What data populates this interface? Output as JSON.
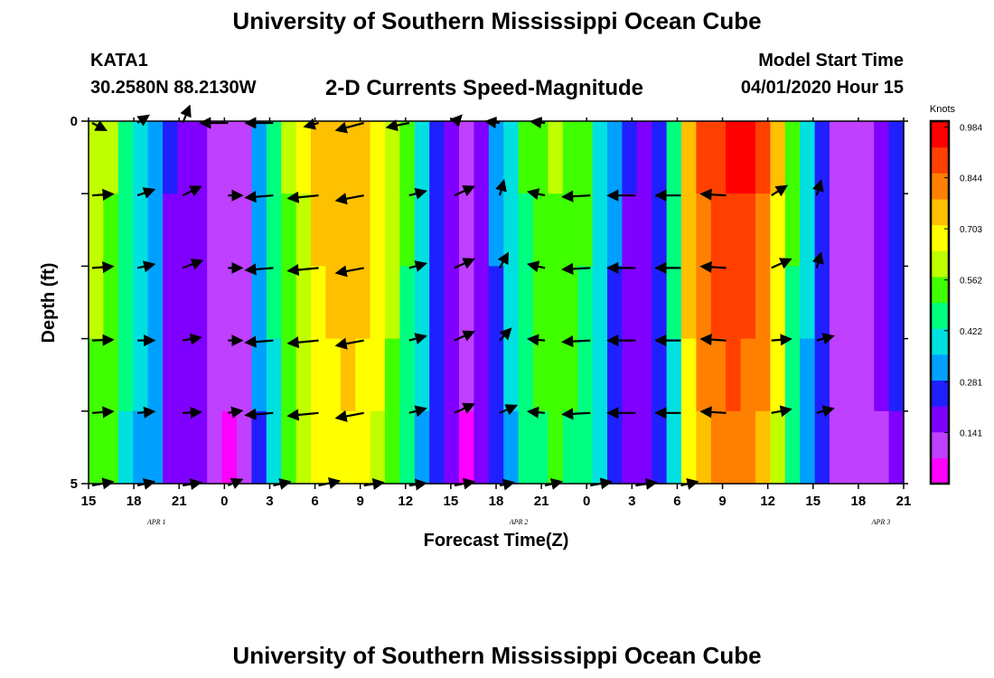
{
  "header": {
    "title": "University of Southern Mississippi Ocean Cube",
    "station_id": "KATA1",
    "coordinates": "30.2580N 88.2130W",
    "chart_title": "2-D Currents Speed-Magnitude",
    "model_label": "Model Start Time",
    "model_time": "04/01/2020 Hour 15"
  },
  "footer": {
    "title": "University of Southern Mississippi Ocean Cube"
  },
  "colors": {
    "scale": [
      "#ff00ff",
      "#c040ff",
      "#8000ff",
      "#2020ff",
      "#00a0ff",
      "#00e0e0",
      "#00ff80",
      "#40ff00",
      "#c0ff00",
      "#ffff00",
      "#ffc000",
      "#ff8000",
      "#ff4000",
      "#ff0000"
    ]
  },
  "chart_data": {
    "type": "heatmap",
    "title": "2-D Currents Speed-Magnitude",
    "xlabel": "Forecast Time(Z)",
    "ylabel": "Depth (ft)",
    "ylim": [
      0,
      5
    ],
    "y_tick_labels": [
      "0",
      "5"
    ],
    "x_tick_labels": [
      "15",
      "18",
      "21",
      "0",
      "3",
      "6",
      "9",
      "12",
      "15",
      "18",
      "21",
      "0",
      "3",
      "6",
      "9",
      "12",
      "15",
      "18",
      "21"
    ],
    "date_labels": [
      {
        "label": "APR 1",
        "hour_index": 4.5
      },
      {
        "label": "APR 2",
        "hour_index": 28.5
      },
      {
        "label": "APR 3",
        "hour_index": 52.5
      }
    ],
    "colorbar": {
      "unit": "Knots",
      "min": 0.0,
      "max": 1.0,
      "ticks": [
        0.984,
        0.844,
        0.703,
        0.562,
        0.422,
        0.281,
        0.141
      ]
    },
    "depth_rows": 5,
    "hours_count": 55,
    "speed_knots_profile": [
      0.62,
      0.58,
      0.48,
      0.4,
      0.33,
      0.22,
      0.2,
      0.18,
      0.12,
      0.08,
      0.1,
      0.32,
      0.46,
      0.58,
      0.66,
      0.74,
      0.77,
      0.78,
      0.76,
      0.7,
      0.62,
      0.52,
      0.4,
      0.28,
      0.18,
      0.08,
      0.18,
      0.3,
      0.4,
      0.5,
      0.55,
      0.58,
      0.56,
      0.52,
      0.42,
      0.3,
      0.22,
      0.17,
      0.25,
      0.46,
      0.76,
      0.86,
      0.92,
      0.95,
      0.93,
      0.86,
      0.72,
      0.52,
      0.38,
      0.27,
      0.14,
      0.1,
      0.12,
      0.16,
      0.24
    ],
    "depth_factors": [
      1.0,
      0.97,
      0.95,
      0.92,
      0.88
    ],
    "vectors": [
      [
        [
          1,
          1
        ],
        [
          0.8,
          -1
        ],
        [
          0.5,
          -2.3
        ],
        [
          -2,
          0
        ],
        [
          -2,
          0
        ],
        [
          -1,
          0.5
        ],
        [
          -2,
          1
        ],
        [
          -1.6,
          0.6
        ],
        [
          0.5,
          -1
        ],
        [
          -1,
          -0.2
        ],
        [
          -1,
          -0.2
        ]
      ],
      [
        [
          1.5,
          -0.2
        ],
        [
          1.2,
          -0.8
        ],
        [
          1.3,
          -1.2
        ],
        [
          1,
          0
        ],
        [
          -2,
          0.3
        ],
        [
          -2.2,
          0.4
        ],
        [
          -2,
          0.7
        ],
        [
          1.2,
          -0.6
        ],
        [
          1.4,
          -1.2
        ],
        [
          0.3,
          -2
        ],
        [
          -1.2,
          -0.5
        ],
        [
          -2,
          0.2
        ],
        [
          -2,
          0
        ],
        [
          -1.8,
          0
        ],
        [
          -1.8,
          -0.2
        ],
        [
          1.1,
          -1.3
        ],
        [
          0.3,
          -2
        ]
      ],
      [
        [
          1.5,
          -0.2
        ],
        [
          1.2,
          -0.5
        ],
        [
          1.4,
          -1
        ],
        [
          1,
          0
        ],
        [
          -2,
          0.3
        ],
        [
          -2.2,
          0.4
        ],
        [
          -2,
          0.7
        ],
        [
          1.2,
          -0.6
        ],
        [
          1.4,
          -1.2
        ],
        [
          0.6,
          -2
        ],
        [
          -1.2,
          -0.5
        ],
        [
          -2,
          0.2
        ],
        [
          -2,
          0
        ],
        [
          -1.8,
          0
        ],
        [
          -1.8,
          -0.2
        ],
        [
          1.4,
          -1.2
        ],
        [
          0.3,
          -2
        ]
      ],
      [
        [
          1.5,
          -0.1
        ],
        [
          1.2,
          0
        ],
        [
          1.3,
          -0.4
        ],
        [
          1,
          0
        ],
        [
          -2,
          0.3
        ],
        [
          -2.2,
          0.4
        ],
        [
          -2,
          0.7
        ],
        [
          1.2,
          -0.6
        ],
        [
          1.4,
          -1.2
        ],
        [
          0.8,
          -1.6
        ],
        [
          -1.2,
          -0.2
        ],
        [
          -2,
          0.2
        ],
        [
          -2,
          0
        ],
        [
          -1.8,
          0
        ],
        [
          -1.8,
          -0.2
        ],
        [
          1.4,
          -0.2
        ],
        [
          1.2,
          -0.6
        ]
      ],
      [
        [
          1.5,
          -0.2
        ],
        [
          1.2,
          -0.2
        ],
        [
          1.3,
          -0.1
        ],
        [
          1,
          -0.3
        ],
        [
          -2,
          0.3
        ],
        [
          -2.2,
          0.4
        ],
        [
          -2,
          0.7
        ],
        [
          1.2,
          -0.6
        ],
        [
          1.4,
          -1.2
        ],
        [
          1.2,
          -1.0
        ],
        [
          -1.2,
          -0.2
        ],
        [
          -2,
          0.2
        ],
        [
          -2,
          0
        ],
        [
          -1.8,
          0
        ],
        [
          -1.8,
          -0.2
        ],
        [
          1.4,
          -0.5
        ],
        [
          1.2,
          -0.6
        ]
      ],
      [
        [
          1.5,
          -0.5
        ],
        [
          1.2,
          -0.5
        ],
        [
          1.3,
          -0.4
        ],
        [
          1,
          -0.8
        ],
        [
          1.2,
          -0.5
        ],
        [
          1.5,
          -0.6
        ],
        [
          1.4,
          -0.4
        ],
        [
          1.2,
          -0.3
        ],
        [
          1.4,
          -0.5
        ],
        [
          1.0,
          -0.4
        ],
        [
          1.2,
          -0.5
        ],
        [
          1.5,
          -0.5
        ],
        [
          1.5,
          -0.4
        ],
        [
          1.2,
          -0.5
        ]
      ]
    ]
  }
}
